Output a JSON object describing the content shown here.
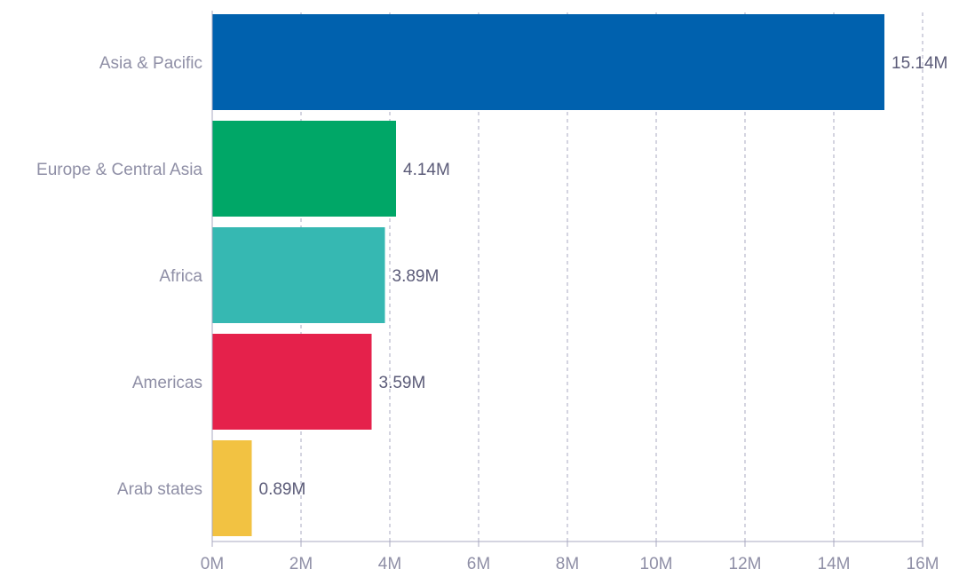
{
  "chart_data": {
    "type": "bar",
    "orientation": "horizontal",
    "title": "",
    "xlabel": "",
    "ylabel": "",
    "categories": [
      "Asia & Pacific",
      "Europe & Central Asia",
      "Africa",
      "Americas",
      "Arab states"
    ],
    "values": [
      15.14,
      4.14,
      3.89,
      3.59,
      0.89
    ],
    "value_labels": [
      "15.14M",
      "4.14M",
      "3.89M",
      "3.59M",
      "0.89M"
    ],
    "colors": [
      "#0061ae",
      "#00a767",
      "#36b8b2",
      "#e5214b",
      "#f2c242"
    ],
    "xlim": [
      0,
      16
    ],
    "x_ticks": [
      0,
      2,
      4,
      6,
      8,
      10,
      12,
      14,
      16
    ],
    "x_tick_labels": [
      "0M",
      "2M",
      "4M",
      "6M",
      "8M",
      "10M",
      "12M",
      "14M",
      "16M"
    ],
    "grid": "vertical dashed"
  }
}
